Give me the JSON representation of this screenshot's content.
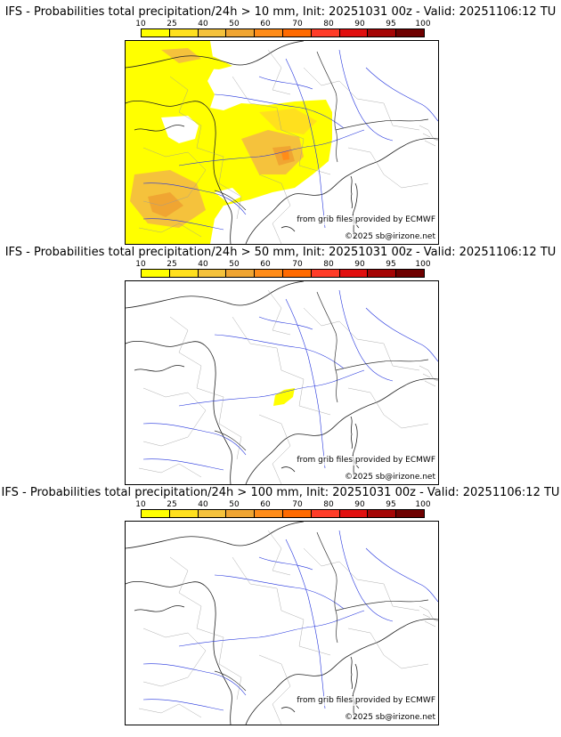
{
  "colorbar": {
    "labels": [
      "10",
      "25",
      "40",
      "50",
      "60",
      "70",
      "80",
      "90",
      "95",
      "100"
    ],
    "colors": [
      "#ffff00",
      "#ffe01e",
      "#f5c23c",
      "#f0a532",
      "#ff8c19",
      "#ff6a00",
      "#ff3c28",
      "#e10f0f",
      "#a50505",
      "#6e0000"
    ]
  },
  "panels": [
    {
      "title": "IFS - Probabilities total precipitation/24h > 10 mm, Init: 20251031 00z - Valid: 20251106:12 TU",
      "source_note": "from grib files provided by ECMWF",
      "copyright": "©2025 sb@irizone.net"
    },
    {
      "title": "IFS - Probabilities total precipitation/24h > 50 mm, Init: 20251031 00z - Valid: 20251106:12 TU",
      "source_note": "from grib files provided by ECMWF",
      "copyright": "©2025 sb@irizone.net"
    },
    {
      "title": "IFS - Probabilities total precipitation/24h > 100 mm, Init: 20251031 00z - Valid: 20251106:12 TU",
      "source_note": "from grib files provided by ECMWF",
      "copyright": "©2025 sb@irizone.net"
    }
  ]
}
